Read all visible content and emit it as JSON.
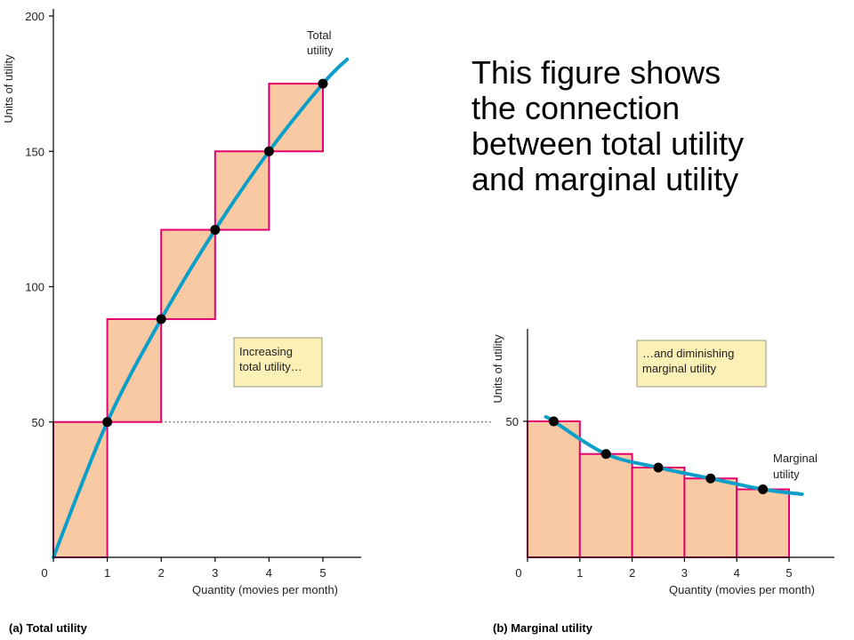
{
  "caption": {
    "lines": [
      "This figure shows",
      "the connection",
      "between total utility",
      "and marginal utility"
    ]
  },
  "chart_data": [
    {
      "type": "line",
      "panel_label": "(a) Total utility",
      "xlabel": "Quantity (movies per month)",
      "ylabel": "Units of utility",
      "xlim": [
        0,
        5.7
      ],
      "ylim": [
        0,
        200
      ],
      "x_ticks": [
        "0",
        "1",
        "2",
        "3",
        "4",
        "5"
      ],
      "y_ticks": [
        "50",
        "100",
        "150",
        "200"
      ],
      "series": [
        {
          "name": "Total utility",
          "x": [
            1,
            2,
            3,
            4,
            5
          ],
          "y": [
            50,
            88,
            121,
            150,
            175
          ]
        }
      ],
      "bars": {
        "x_start": [
          0,
          1,
          2,
          3,
          4
        ],
        "x_end": [
          1,
          2,
          3,
          4,
          5
        ],
        "bottom": [
          0,
          50,
          88,
          121,
          150
        ],
        "top": [
          50,
          88,
          121,
          150,
          175
        ]
      },
      "curve_end": {
        "x": 5.45,
        "y": 184
      },
      "annotation": "Increasing\ntotal utility…",
      "reference_line_y": 50,
      "grid": false
    },
    {
      "type": "bar",
      "panel_label": "(b) Marginal utility",
      "xlabel": "Quantity (movies per month)",
      "ylabel": "Units of utility",
      "xlim": [
        0,
        6.1
      ],
      "ylim": [
        0,
        88
      ],
      "x_ticks": [
        "0",
        "1",
        "2",
        "3",
        "4",
        "5"
      ],
      "y_ticks": [
        "50"
      ],
      "categories": [
        "1",
        "2",
        "3",
        "4",
        "5"
      ],
      "values": [
        50,
        38,
        33,
        29,
        25
      ],
      "series": [
        {
          "name": "Marginal utility",
          "x": [
            0.5,
            1.5,
            2.5,
            3.5,
            4.5
          ],
          "y": [
            50,
            38,
            33,
            29,
            25
          ]
        }
      ],
      "curve_range": [
        0.35,
        5.25
      ],
      "annotation": "…and diminishing\nmarginal utility",
      "grid": false
    }
  ]
}
